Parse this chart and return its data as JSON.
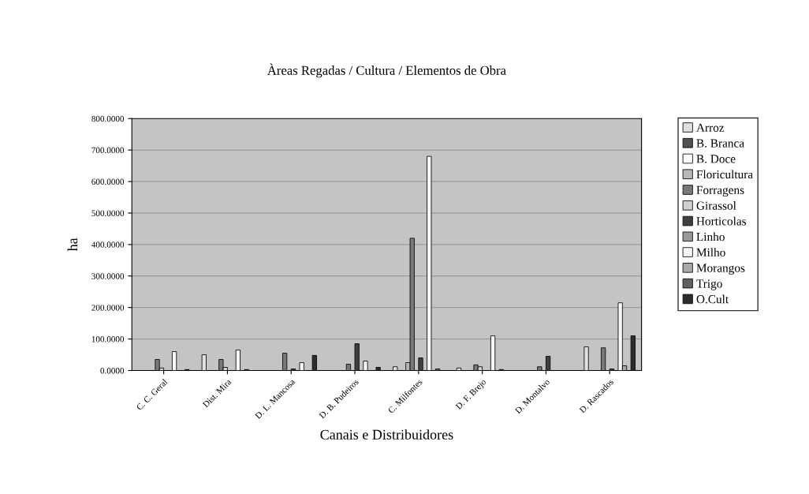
{
  "chart_data": {
    "type": "bar",
    "title": "Àreas Regadas / Cultura / Elementos de Obra",
    "xlabel": "Canais e Distribuidores",
    "ylabel": "ha",
    "categories": [
      "C. C. Geral",
      "Dist. Mira",
      "D. L. Mancosa",
      "D. B. Pudeiros",
      "C. Milfontes",
      "D. F. Brejo",
      "D. Montalvo",
      "D. Rascados"
    ],
    "series": [
      {
        "name": "Arroz",
        "color": "#e0e0e0",
        "values": [
          null,
          50,
          null,
          null,
          12,
          8,
          null,
          75
        ]
      },
      {
        "name": "B. Branca",
        "color": "#505050",
        "values": [
          null,
          null,
          null,
          null,
          null,
          null,
          null,
          null
        ]
      },
      {
        "name": "B. Doce",
        "color": "#ffffff",
        "values": [
          null,
          null,
          null,
          null,
          null,
          null,
          null,
          null
        ]
      },
      {
        "name": "Floricultura",
        "color": "#b8b8b8",
        "values": [
          null,
          null,
          null,
          null,
          25,
          null,
          null,
          null
        ]
      },
      {
        "name": "Forragens",
        "color": "#787878",
        "values": [
          35,
          35,
          55,
          20,
          420,
          18,
          12,
          72
        ]
      },
      {
        "name": "Girassol",
        "color": "#d0d0d0",
        "values": [
          8,
          10,
          null,
          null,
          null,
          12,
          null,
          null
        ]
      },
      {
        "name": "Horticolas",
        "color": "#404040",
        "values": [
          null,
          null,
          5,
          85,
          40,
          null,
          45,
          5
        ]
      },
      {
        "name": "Linho",
        "color": "#989898",
        "values": [
          null,
          null,
          null,
          null,
          null,
          null,
          null,
          null
        ]
      },
      {
        "name": "Milho",
        "color": "#f7f7f7",
        "values": [
          60,
          65,
          25,
          30,
          680,
          110,
          null,
          215
        ]
      },
      {
        "name": "Morangos",
        "color": "#a8a8a8",
        "values": [
          null,
          null,
          null,
          null,
          null,
          null,
          null,
          15
        ]
      },
      {
        "name": "Trigo",
        "color": "#606060",
        "values": [
          null,
          3,
          null,
          null,
          5,
          3,
          null,
          null
        ]
      },
      {
        "name": "O.Cult",
        "color": "#2c2c2c",
        "values": [
          3,
          null,
          48,
          10,
          null,
          null,
          null,
          110
        ]
      }
    ],
    "ylim": [
      0,
      800
    ],
    "yticks": [
      {
        "value": 0,
        "label": "0.0000"
      },
      {
        "value": 100,
        "label": "100.0000"
      },
      {
        "value": 200,
        "label": "200.0000"
      },
      {
        "value": 300,
        "label": "300.0000"
      },
      {
        "value": 400,
        "label": "400.0000"
      },
      {
        "value": 500,
        "label": "500.0000"
      },
      {
        "value": 600,
        "label": "600.0000"
      },
      {
        "value": 700,
        "label": "700.0000"
      },
      {
        "value": 800,
        "label": "800.0000"
      }
    ],
    "grid": "y",
    "legend": "right"
  }
}
